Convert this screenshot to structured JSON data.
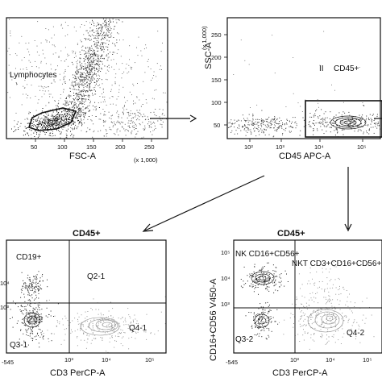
{
  "chart_data": [
    {
      "panel": "top-left",
      "type": "scatter",
      "xlabel": "FSC-A",
      "x_unit": "(x 1,000)",
      "x_ticks": [
        "50",
        "100",
        "150",
        "200",
        "250"
      ],
      "gate_label": "Lymphocytes"
    },
    {
      "panel": "top-right",
      "type": "scatter",
      "xlabel": "CD45 APC-A",
      "ylabel": "SSC-A",
      "y_unit": "(x 1,000)",
      "y_ticks": [
        "50",
        "100",
        "150",
        "200",
        "250"
      ],
      "x_ticks": [
        "10²",
        "10³",
        "10⁴",
        "10⁵"
      ],
      "gate_label": "CD45+",
      "gate_marker": "II"
    },
    {
      "panel": "bottom-left",
      "type": "scatter",
      "title": "CD45+",
      "xlabel": "CD3 PerCP-A",
      "x_ticks": [
        "-545",
        "10³",
        "10⁴",
        "10⁵"
      ],
      "y_ticks": [
        "10⁴",
        "10³"
      ],
      "quadrants": [
        "CD19+",
        "Q2-1",
        "Q3-1",
        "Q4-1"
      ]
    },
    {
      "panel": "bottom-right",
      "type": "scatter",
      "title": "CD45+",
      "xlabel": "CD3 PerCP-A",
      "ylabel": "CD16+CD56 V450-A",
      "x_ticks": [
        "-545",
        "10³",
        "10⁴",
        "10⁵"
      ],
      "y_ticks": [
        "10⁵",
        "10⁴",
        "10³"
      ],
      "quadrants": [
        "NK CD16+CD56+",
        "NKT CD3+CD16+CD56+",
        "Q3-2",
        "Q4-2"
      ]
    }
  ]
}
